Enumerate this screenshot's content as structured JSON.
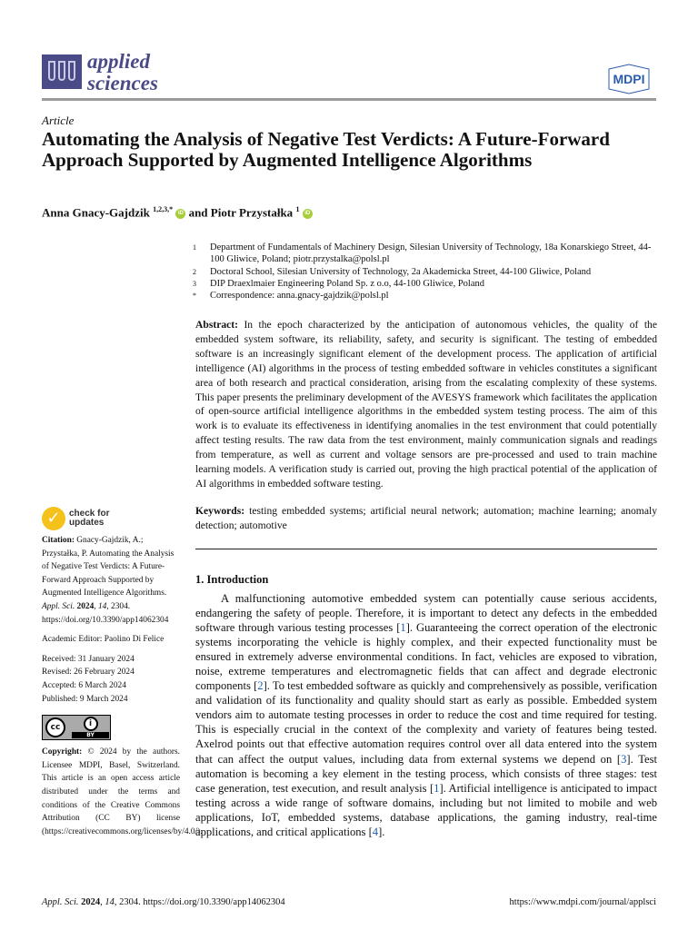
{
  "header": {
    "journal_line1": "applied",
    "journal_line2": "sciences",
    "publisher_logo": "MDPI",
    "brand_color": "#4a4a86"
  },
  "article_type": "Article",
  "title": "Automating the Analysis of Negative Test Verdicts: A Future-Forward Approach Supported by Augmented Intelligence Algorithms",
  "authors": [
    {
      "name": "Anna Gnacy-Gajdzik",
      "sup": "1,2,3,*"
    },
    {
      "name": "Piotr Przystałka",
      "sup": "1"
    }
  ],
  "authors_joiner": "and",
  "orcid_icon": "iD",
  "affiliations": [
    {
      "num": "1",
      "text": "Department of Fundamentals of Machinery Design, Silesian University of Technology, 18a Konarskiego Street, 44-100 Gliwice, Poland; piotr.przystalka@polsl.pl"
    },
    {
      "num": "2",
      "text": "Doctoral School, Silesian University of Technology, 2a Akademicka Street, 44-100 Gliwice, Poland"
    },
    {
      "num": "3",
      "text": "DIP Draexlmaier Engineering Poland Sp. z o.o, 44-100 Gliwice, Poland"
    },
    {
      "num": "*",
      "text": "Correspondence: anna.gnacy-gajdzik@polsl.pl"
    }
  ],
  "abstract": {
    "label": "Abstract:",
    "text": "In the epoch characterized by the anticipation of autonomous vehicles, the quality of the embedded system software, its reliability, safety, and security is significant. The testing of embedded software is an increasingly significant element of the development process. The application of artificial intelligence (AI) algorithms in the process of testing embedded software in vehicles constitutes a significant area of both research and practical consideration, arising from the escalating complexity of these systems. This paper presents the preliminary development of the AVESYS framework which facilitates the application of open-source artificial intelligence algorithms in the embedded system testing process. The aim of this work is to evaluate its effectiveness in identifying anomalies in the test environment that could potentially affect testing results. The raw data from the test environment, mainly communication signals and readings from temperature, as well as current and voltage sensors are pre-processed and used to train machine learning models. A verification study is carried out, proving the high practical potential of the application of AI algorithms in embedded software testing."
  },
  "keywords": {
    "label": "Keywords:",
    "text": "testing embedded systems; artificial neural network; automation; machine learning; anomaly detection; automotive"
  },
  "introduction": {
    "heading": "1. Introduction",
    "segments": [
      {
        "text": "A malfunctioning automotive embedded system can potentially cause serious accidents, endangering the safety of people. Therefore, it is important to detect any defects in the embedded software through various testing processes "
      },
      {
        "ref": "1"
      },
      {
        "text": ". Guaranteeing the correct operation of the electronic systems incorporating the vehicle is highly complex, and their expected functionality must be ensured in extremely adverse environmental conditions. In fact, vehicles are exposed to vibration, noise, extreme temperatures and electromagnetic fields that can affect and degrade electronic components "
      },
      {
        "ref": "2"
      },
      {
        "text": ". To test embedded software as quickly and comprehensively as possible, verification and validation of its functionality and quality should start as early as possible. Embedded system vendors aim to automate testing processes in order to reduce the cost and time required for testing. This is especially crucial in the context of the complexity and variety of features being tested. Axelrod points out that effective automation requires control over all data entered into the system that can affect the output values, including data from external systems we depend on "
      },
      {
        "ref": "3"
      },
      {
        "text": ". Test automation is becoming a key element in the testing process, which consists of three stages: test case generation, test execution, and result analysis "
      },
      {
        "ref": "1"
      },
      {
        "text": ". Artificial intelligence is anticipated to impact testing across a wide range of software domains, including but not limited to mobile and web applications, IoT, embedded systems, database applications, the gaming industry, real-time applications, and critical applications "
      },
      {
        "ref": "4"
      },
      {
        "text": "."
      }
    ]
  },
  "sidebar": {
    "check_line1": "check for",
    "check_line2": "updates",
    "citation_label": "Citation:",
    "citation_text": "Gnacy-Gajdzik, A.; Przystałka, P. Automating the Analysis of Negative Test Verdicts: A Future-Forward Approach Supported by Augmented Intelligence Algorithms.",
    "citation_journal": "Appl. Sci.",
    "citation_year": "2024",
    "citation_volume": "14",
    "citation_rest": ", 2304. https://doi.org/10.3390/app14062304",
    "editor": "Academic Editor: Paolino Di Felice",
    "dates": [
      "Received: 31 January 2024",
      "Revised: 26 February 2024",
      "Accepted: 6 March 2024",
      "Published: 9 March 2024"
    ],
    "cc_label": "cc",
    "by_label": "BY",
    "copyright_label": "Copyright:",
    "copyright_text": "© 2024 by the authors. Licensee MDPI, Basel, Switzerland. This article is an open access article distributed under the terms and conditions of the Creative Commons Attribution (CC BY) license (https://creativecommons.org/licenses/by/4.0/)."
  },
  "footer": {
    "journal": "Appl. Sci.",
    "year": "2024",
    "volume": "14",
    "rest": ", 2304. https://doi.org/10.3390/app14062304",
    "url": "https://www.mdpi.com/journal/applsci"
  }
}
